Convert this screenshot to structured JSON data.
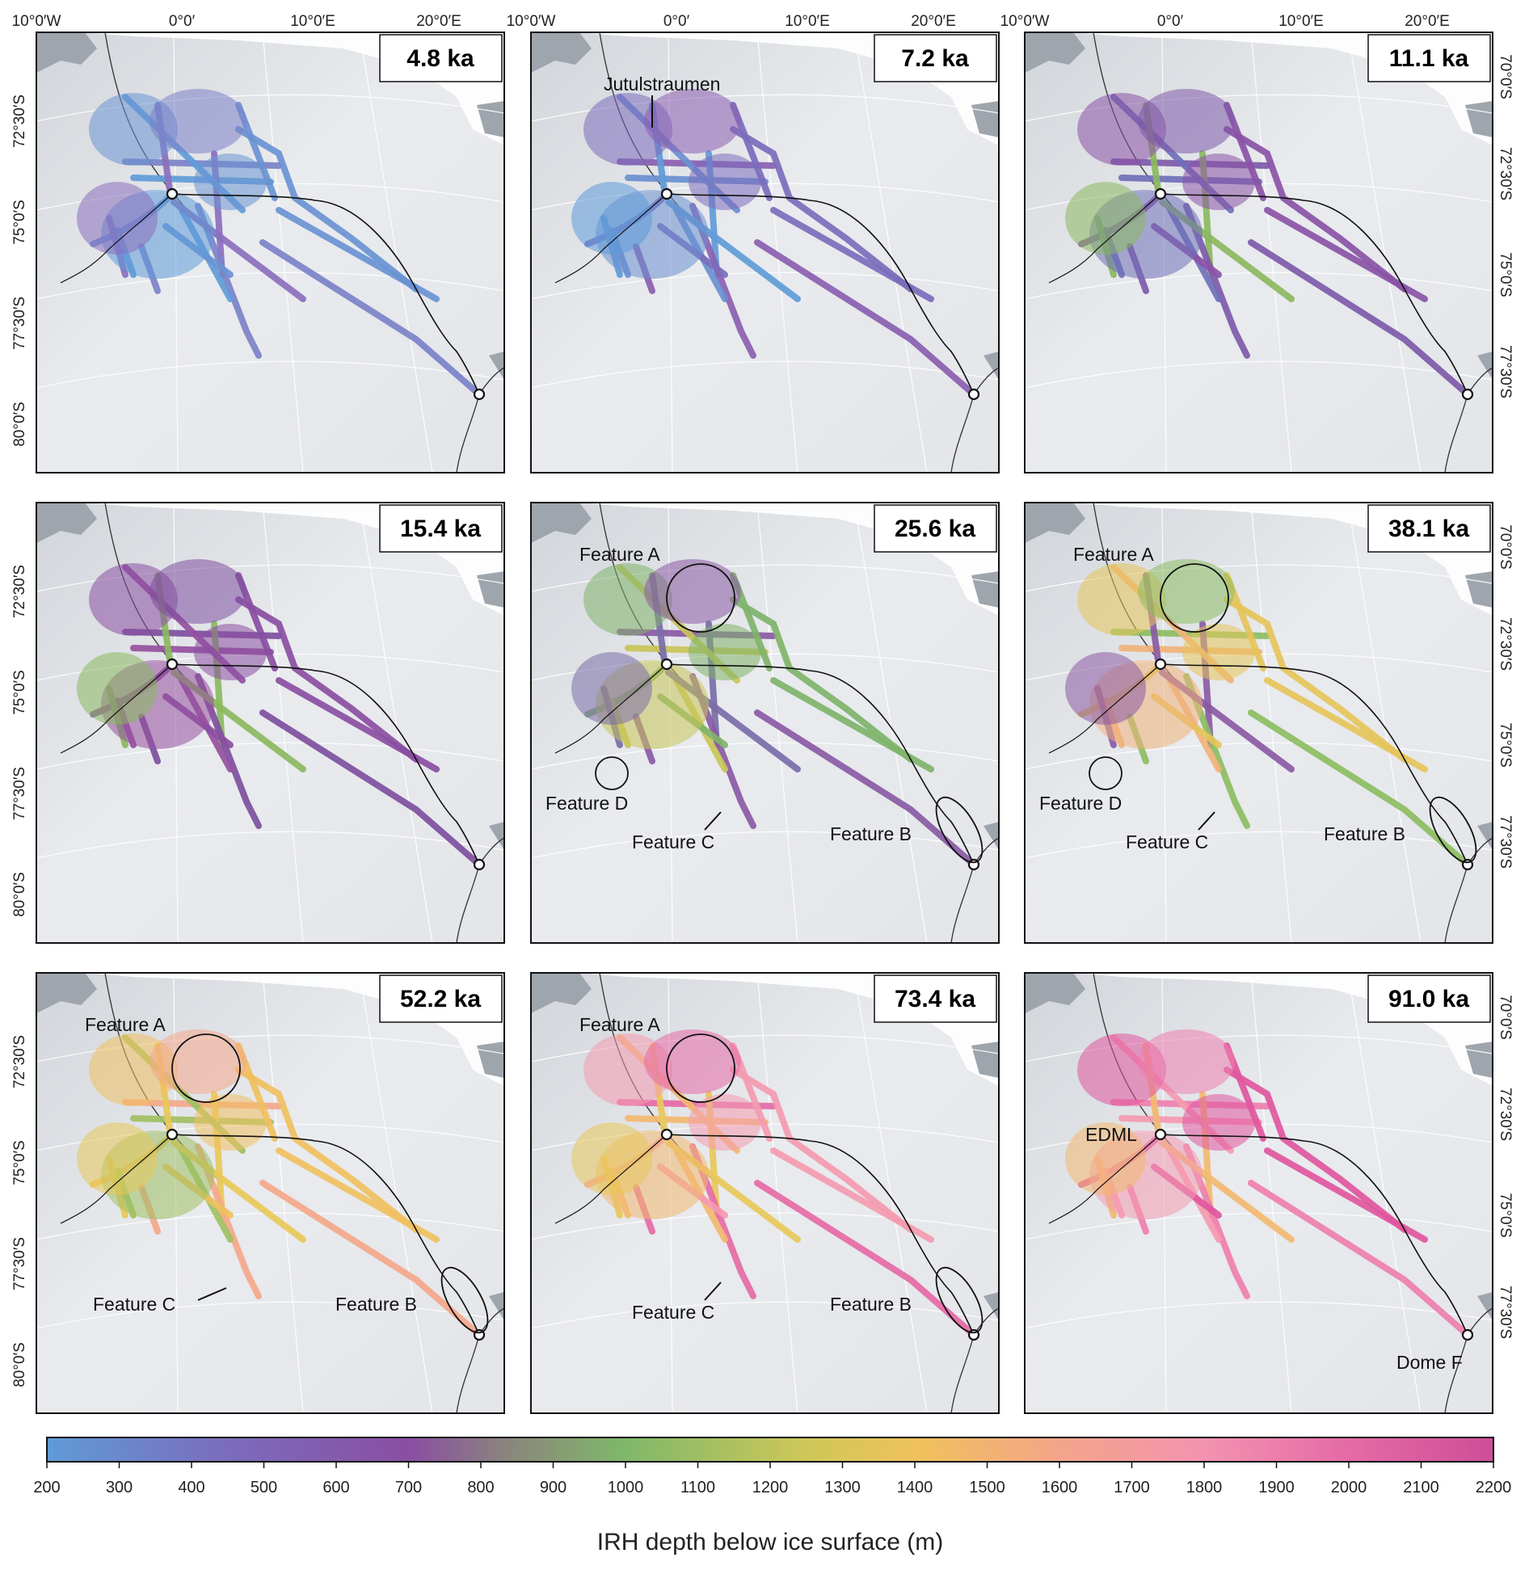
{
  "panels": [
    {
      "age": "4.8 ka",
      "colors": [
        "#6a93d2",
        "#7b82c8",
        "#5f9bd8",
        "#8a6fbe"
      ],
      "notes": []
    },
    {
      "age": "7.2 ka",
      "colors": [
        "#7b6cbc",
        "#8a5eb0",
        "#6a8fd0",
        "#5f9bd8"
      ],
      "notes": [
        {
          "text": "Jutulstraumen",
          "kind": "label-arrow"
        }
      ]
    },
    {
      "age": "11.1 ka",
      "colors": [
        "#8a52a6",
        "#7d5aa9",
        "#6f6fb8",
        "#8bb85e"
      ],
      "notes": []
    },
    {
      "age": "15.4 ka",
      "colors": [
        "#8a4ea2",
        "#7d4f9e",
        "#95509e",
        "#8bb85e"
      ],
      "notes": []
    },
    {
      "age": "25.6 ka",
      "colors": [
        "#7fb36a",
        "#8a5aa4",
        "#c9c458",
        "#7a6da8"
      ],
      "notes": [
        {
          "text": "Feature A",
          "kind": "label-circle"
        },
        {
          "text": "Feature D",
          "kind": "label-circle"
        },
        {
          "text": "Feature C",
          "kind": "label-arrow"
        },
        {
          "text": "Feature B",
          "kind": "label-ellipse"
        }
      ]
    },
    {
      "age": "38.1 ka",
      "colors": [
        "#e5c45a",
        "#8cbd62",
        "#f0b27a",
        "#8a5aa4"
      ],
      "notes": [
        {
          "text": "Feature A",
          "kind": "label-circle"
        },
        {
          "text": "Feature D",
          "kind": "label-circle"
        },
        {
          "text": "Feature C",
          "kind": "label-arrow"
        },
        {
          "text": "Feature B",
          "kind": "label-ellipse"
        }
      ]
    },
    {
      "age": "52.2 ka",
      "colors": [
        "#f0c060",
        "#f4a78a",
        "#9fc062",
        "#e8c85a"
      ],
      "notes": [
        {
          "text": "Feature A",
          "kind": "label-circle"
        },
        {
          "text": "Feature C",
          "kind": "label-arrow"
        },
        {
          "text": "Feature B",
          "kind": "label-ellipse"
        }
      ]
    },
    {
      "age": "73.4 ka",
      "colors": [
        "#f49ab0",
        "#e56aa6",
        "#f2b870",
        "#e8c85a"
      ],
      "notes": [
        {
          "text": "Feature A",
          "kind": "label-circle"
        },
        {
          "text": "Feature C",
          "kind": "label-arrow"
        },
        {
          "text": "Feature B",
          "kind": "label-ellipse"
        }
      ]
    },
    {
      "age": "91.0 ka",
      "colors": [
        "#e0569e",
        "#ee7fae",
        "#f49ab0",
        "#f2b870"
      ],
      "notes": [
        {
          "text": "EDML",
          "kind": "site-label"
        },
        {
          "text": "Dome F",
          "kind": "site-label"
        }
      ]
    }
  ],
  "axes": {
    "longitudes_top": [
      "10°0′W",
      "0°0′",
      "10°0′E",
      "20°0′E"
    ],
    "latitudes_left": [
      "72°30′S",
      "75°0′S",
      "77°30′S",
      "80°0′S"
    ],
    "latitudes_right": [
      "70°0′S",
      "72°30′S",
      "75°0′S",
      "77°30′S"
    ]
  },
  "colorbar": {
    "label": "IRH depth below ice surface (m)",
    "ticks": [
      "200",
      "300",
      "400",
      "500",
      "600",
      "700",
      "800",
      "900",
      "1000",
      "1100",
      "1200",
      "1300",
      "1400",
      "1500",
      "1600",
      "1700",
      "1800",
      "1900",
      "2000",
      "2100",
      "2200"
    ],
    "range": [
      200,
      2200
    ],
    "stops": [
      {
        "v": 200,
        "c": "#5f9bd8"
      },
      {
        "v": 450,
        "c": "#7b6cbc"
      },
      {
        "v": 700,
        "c": "#8a4ea2"
      },
      {
        "v": 850,
        "c": "#8a8a7a"
      },
      {
        "v": 1000,
        "c": "#7fb86a"
      },
      {
        "v": 1250,
        "c": "#cfc758"
      },
      {
        "v": 1400,
        "c": "#efc25a"
      },
      {
        "v": 1600,
        "c": "#f4a48a"
      },
      {
        "v": 1800,
        "c": "#f393b0"
      },
      {
        "v": 2000,
        "c": "#e56aa6"
      },
      {
        "v": 2200,
        "c": "#cf4e98"
      }
    ]
  },
  "colors": {
    "ocean": "#ffffff",
    "ice": "#e6e8ec",
    "rock": "#9ea5ad",
    "frame": "#111111"
  }
}
